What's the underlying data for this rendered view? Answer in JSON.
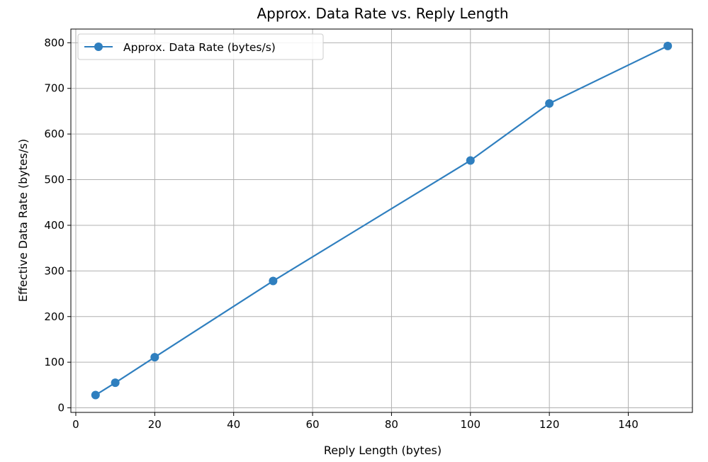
{
  "chart_data": {
    "type": "line",
    "title": "Approx. Data Rate vs. Reply Length",
    "xlabel": "Reply Length (bytes)",
    "ylabel": "Effective Data Rate (bytes/s)",
    "xlim": [
      -1.25,
      156.25
    ],
    "ylim": [
      -10,
      830
    ],
    "xticks": [
      0,
      20,
      40,
      60,
      80,
      100,
      120,
      140
    ],
    "yticks": [
      0,
      100,
      200,
      300,
      400,
      500,
      600,
      700,
      800
    ],
    "grid": true,
    "legend_position": "top-left",
    "series": [
      {
        "name": "Approx. Data Rate (bytes/s)",
        "color": "#2f7fbf",
        "marker": "circle",
        "x": [
          5,
          10,
          20,
          50,
          100,
          120,
          150
        ],
        "y": [
          28,
          55,
          111,
          278,
          542,
          667,
          793
        ]
      }
    ]
  }
}
